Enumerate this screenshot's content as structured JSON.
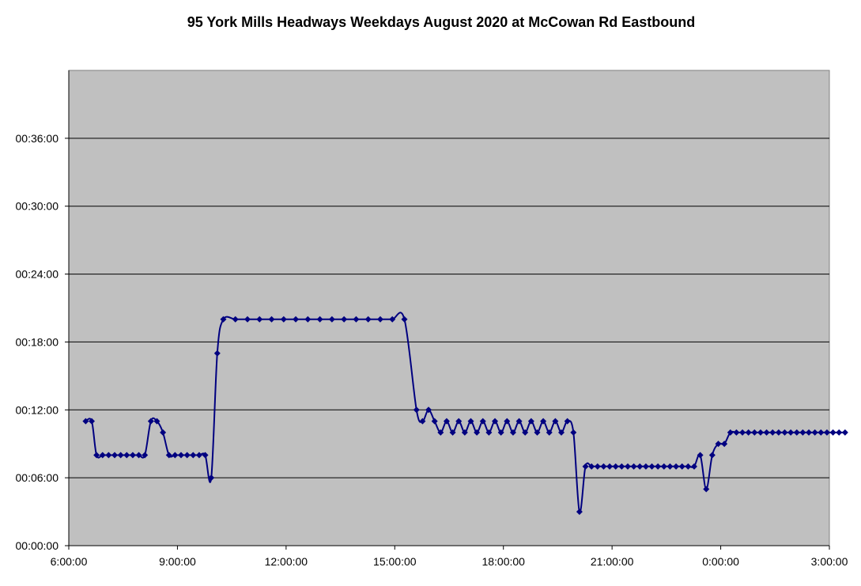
{
  "chart_data": {
    "type": "line",
    "title": "95 York Mills Headways Weekdays August 2020 at McCowan Rd Eastbound",
    "xlabel": "",
    "ylabel": "",
    "xlim": [
      "6:00:00",
      "27:00:00"
    ],
    "ylim": [
      "00:00:00",
      "00:42:00"
    ],
    "x_ticks": [
      "6:00:00",
      "9:00:00",
      "12:00:00",
      "15:00:00",
      "18:00:00",
      "21:00:00",
      "0:00:00",
      "3:00:00"
    ],
    "y_ticks": [
      "00:00:00",
      "00:06:00",
      "00:12:00",
      "00:18:00",
      "00:24:00",
      "00:30:00",
      "00:36:00"
    ],
    "grid": "horizontal",
    "legend": "none",
    "colors": {
      "series": "#000080",
      "plot_background": "#c0c0c0",
      "gridline": "#000000"
    },
    "series": [
      {
        "x": [
          "6:28",
          "6:38",
          "6:46",
          "6:56",
          "7:06",
          "7:16",
          "7:26",
          "7:36",
          "7:46",
          "7:56",
          "8:06",
          "8:16",
          "8:26",
          "8:36",
          "8:46",
          "8:56",
          "9:06",
          "9:16",
          "9:26",
          "9:36",
          "9:46",
          "9:56",
          "10:06",
          "10:16",
          "10:36",
          "10:56",
          "11:16",
          "11:36",
          "11:56",
          "12:16",
          "12:36",
          "12:56",
          "13:16",
          "13:36",
          "13:56",
          "14:16",
          "14:36",
          "14:56",
          "15:16",
          "15:36",
          "15:46",
          "15:56",
          "16:06",
          "16:16",
          "16:26",
          "16:36",
          "16:46",
          "16:56",
          "17:06",
          "17:16",
          "17:26",
          "17:36",
          "17:46",
          "17:56",
          "18:06",
          "18:16",
          "18:26",
          "18:36",
          "18:46",
          "18:56",
          "19:06",
          "19:16",
          "19:26",
          "19:36",
          "19:46",
          "19:56",
          "20:06",
          "20:16",
          "20:26",
          "20:36",
          "20:46",
          "20:56",
          "21:06",
          "21:16",
          "21:26",
          "21:36",
          "21:46",
          "21:56",
          "22:06",
          "22:16",
          "22:26",
          "22:36",
          "22:46",
          "22:56",
          "23:06",
          "23:16",
          "23:26",
          "23:36",
          "23:46",
          "23:56",
          "24:06",
          "24:16",
          "24:26",
          "24:36",
          "24:46",
          "24:56",
          "25:06",
          "25:16",
          "25:26",
          "25:36",
          "25:46",
          "25:56",
          "26:06",
          "26:16",
          "26:26",
          "26:36",
          "26:46",
          "26:56",
          "27:06",
          "27:16",
          "27:26"
        ],
        "values": [
          "00:11:00",
          "00:11:00",
          "00:08:00",
          "00:08:00",
          "00:08:00",
          "00:08:00",
          "00:08:00",
          "00:08:00",
          "00:08:00",
          "00:08:00",
          "00:08:00",
          "00:11:00",
          "00:11:00",
          "00:10:00",
          "00:08:00",
          "00:08:00",
          "00:08:00",
          "00:08:00",
          "00:08:00",
          "00:08:00",
          "00:08:00",
          "00:06:00",
          "00:17:00",
          "00:20:00",
          "00:20:00",
          "00:20:00",
          "00:20:00",
          "00:20:00",
          "00:20:00",
          "00:20:00",
          "00:20:00",
          "00:20:00",
          "00:20:00",
          "00:20:00",
          "00:20:00",
          "00:20:00",
          "00:20:00",
          "00:20:00",
          "00:20:00",
          "00:12:00",
          "00:11:00",
          "00:12:00",
          "00:11:00",
          "00:10:00",
          "00:11:00",
          "00:10:00",
          "00:11:00",
          "00:10:00",
          "00:11:00",
          "00:10:00",
          "00:11:00",
          "00:10:00",
          "00:11:00",
          "00:10:00",
          "00:11:00",
          "00:10:00",
          "00:11:00",
          "00:10:00",
          "00:11:00",
          "00:10:00",
          "00:11:00",
          "00:10:00",
          "00:11:00",
          "00:10:00",
          "00:11:00",
          "00:10:00",
          "00:03:00",
          "00:07:00",
          "00:07:00",
          "00:07:00",
          "00:07:00",
          "00:07:00",
          "00:07:00",
          "00:07:00",
          "00:07:00",
          "00:07:00",
          "00:07:00",
          "00:07:00",
          "00:07:00",
          "00:07:00",
          "00:07:00",
          "00:07:00",
          "00:07:00",
          "00:07:00",
          "00:07:00",
          "00:07:00",
          "00:08:00",
          "00:05:00",
          "00:08:00",
          "00:09:00",
          "00:09:00",
          "00:10:00",
          "00:10:00",
          "00:10:00",
          "00:10:00",
          "00:10:00",
          "00:10:00",
          "00:10:00",
          "00:10:00",
          "00:10:00",
          "00:10:00",
          "00:10:00",
          "00:10:00",
          "00:10:00",
          "00:10:00",
          "00:10:00",
          "00:10:00",
          "00:10:00",
          "00:10:00",
          "00:10:00",
          "00:10:00"
        ]
      }
    ]
  }
}
